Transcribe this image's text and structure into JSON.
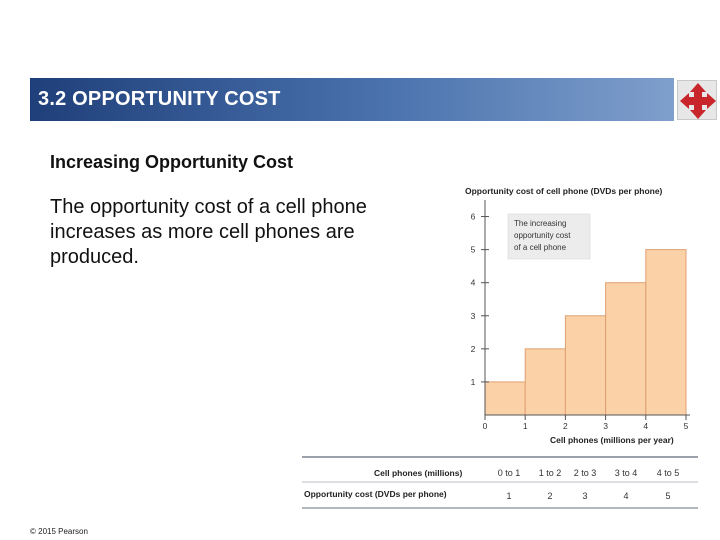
{
  "slide": {
    "title": "3.2  OPPORTUNITY COST",
    "subtitle": "Increasing Opportunity Cost",
    "body": "The opportunity cost of a cell phone increases as more cell phones are produced.",
    "copyright": "© 2015 Pearson",
    "logo_icon": "arrows-cross-icon"
  },
  "colors": {
    "title_bar_dark": "#1f3f7a",
    "title_bar_light": "#7f9fcc",
    "bar_fill": "#fbd1a8",
    "bar_stroke": "#e0a070",
    "logo_red": "#c8262b",
    "table_rule": "#9aa1aa",
    "callout_fill": "#ececec"
  },
  "chart_data": {
    "type": "bar",
    "title": "Opportunity cost of cell phone (DVDs per phone)",
    "xlabel": "Cell phones (millions per year)",
    "ylabel": "Opportunity cost of cell phone (DVDs per phone)",
    "x_ticks": [
      "0",
      "1",
      "2",
      "3",
      "4",
      "5"
    ],
    "y_ticks": [
      "1",
      "2",
      "3",
      "4",
      "5",
      "6"
    ],
    "xlim": [
      0,
      5
    ],
    "ylim": [
      0,
      6.5
    ],
    "bins": [
      {
        "from": 0,
        "to": 1,
        "value": 1
      },
      {
        "from": 1,
        "to": 2,
        "value": 2
      },
      {
        "from": 2,
        "to": 3,
        "value": 3
      },
      {
        "from": 3,
        "to": 4,
        "value": 4
      },
      {
        "from": 4,
        "to": 5,
        "value": 5
      }
    ],
    "annotation": [
      "The increasing",
      "opportunity cost",
      "of a cell phone"
    ]
  },
  "table": {
    "row1_label": "Cell phones (millions)",
    "row2_label": "Opportunity cost (DVDs per phone)",
    "ranges": [
      "0 to 1",
      "1 to 2",
      "2 to 3",
      "3 to 4",
      "4 to 5"
    ],
    "costs": [
      "1",
      "2",
      "3",
      "4",
      "5"
    ]
  }
}
